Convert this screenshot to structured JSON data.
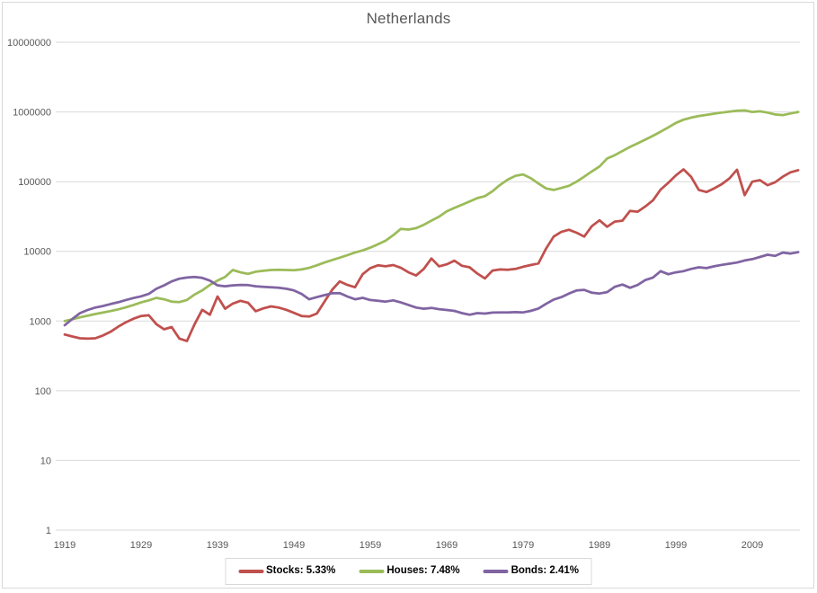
{
  "chart_data": {
    "type": "line",
    "title": "Netherlands",
    "x_scale": "linear",
    "y_scale": "log",
    "ylim": [
      1,
      10000000
    ],
    "xlim": [
      1919,
      2015
    ],
    "grid": "horizontal",
    "legend_position": "bottom",
    "y_ticks": [
      1,
      10,
      100,
      1000,
      10000,
      100000,
      1000000,
      10000000
    ],
    "x_ticks": [
      1919,
      1929,
      1939,
      1949,
      1959,
      1969,
      1979,
      1989,
      1999,
      2009
    ],
    "colors": {
      "grid": "#d9d9d9",
      "axis_text": "#595959",
      "title": "#595959",
      "border": "#d9d9d9"
    },
    "years": [
      1919,
      1920,
      1921,
      1922,
      1923,
      1924,
      1925,
      1926,
      1927,
      1928,
      1929,
      1930,
      1931,
      1932,
      1933,
      1934,
      1935,
      1936,
      1937,
      1938,
      1939,
      1940,
      1941,
      1942,
      1943,
      1944,
      1945,
      1946,
      1947,
      1948,
      1949,
      1950,
      1951,
      1952,
      1953,
      1954,
      1955,
      1956,
      1957,
      1958,
      1959,
      1960,
      1961,
      1962,
      1963,
      1964,
      1965,
      1966,
      1967,
      1968,
      1969,
      1970,
      1971,
      1972,
      1973,
      1974,
      1975,
      1976,
      1977,
      1978,
      1979,
      1980,
      1981,
      1982,
      1983,
      1984,
      1985,
      1986,
      1987,
      1988,
      1989,
      1990,
      1991,
      1992,
      1993,
      1994,
      1995,
      1996,
      1997,
      1998,
      1999,
      2000,
      2001,
      2002,
      2003,
      2004,
      2005,
      2006,
      2007,
      2008,
      2009,
      2010,
      2011,
      2012,
      2013,
      2014,
      2015
    ],
    "series": [
      {
        "name": "Stocks",
        "legend_label": "Stocks: 5.33%",
        "annual_return_pct": 5.33,
        "color": "#C0504D",
        "values": [
          640,
          600,
          565,
          558,
          565,
          620,
          700,
          830,
          960,
          1080,
          1180,
          1210,
          900,
          760,
          820,
          560,
          515,
          900,
          1450,
          1230,
          2250,
          1500,
          1780,
          1950,
          1830,
          1380,
          1520,
          1620,
          1560,
          1450,
          1310,
          1180,
          1160,
          1280,
          1900,
          2800,
          3700,
          3300,
          3050,
          4700,
          5740,
          6300,
          6100,
          6350,
          5800,
          5000,
          4500,
          5600,
          7900,
          6100,
          6500,
          7350,
          6200,
          5900,
          4800,
          4080,
          5300,
          5500,
          5450,
          5600,
          6000,
          6350,
          6700,
          10900,
          16300,
          19000,
          20400,
          18500,
          16300,
          23000,
          27900,
          22500,
          26700,
          27500,
          38000,
          37000,
          44000,
          54000,
          77000,
          96000,
          123000,
          150000,
          117000,
          76000,
          71000,
          80000,
          92000,
          111000,
          148000,
          64000,
          100000,
          105000,
          89000,
          98000,
          118000,
          136000,
          146000
        ]
      },
      {
        "name": "Houses",
        "legend_label": "Houses: 7.48%",
        "annual_return_pct": 7.48,
        "color": "#9BBB59",
        "values": [
          1000,
          1060,
          1130,
          1190,
          1260,
          1320,
          1390,
          1470,
          1570,
          1700,
          1850,
          1980,
          2150,
          2050,
          1900,
          1870,
          2000,
          2400,
          2750,
          3300,
          3800,
          4300,
          5400,
          5000,
          4750,
          5100,
          5250,
          5400,
          5450,
          5400,
          5350,
          5500,
          5800,
          6300,
          6900,
          7500,
          8100,
          8800,
          9600,
          10300,
          11300,
          12600,
          14200,
          17000,
          21000,
          20500,
          21500,
          24000,
          27500,
          31500,
          37500,
          42000,
          46500,
          52000,
          58000,
          62000,
          73000,
          90000,
          107000,
          121000,
          127000,
          112000,
          94000,
          80000,
          76000,
          81000,
          87000,
          100000,
          118000,
          140000,
          165000,
          215000,
          240000,
          275000,
          315000,
          355000,
          400000,
          455000,
          520000,
          600000,
          695000,
          775000,
          830000,
          875000,
          905000,
          945000,
          980000,
          1010000,
          1040000,
          1050000,
          1000000,
          1020000,
          980000,
          920000,
          900000,
          950000,
          1000000
        ]
      },
      {
        "name": "Bonds",
        "legend_label": "Bonds: 2.41%",
        "annual_return_pct": 2.41,
        "color": "#8064A2",
        "values": [
          870,
          1070,
          1300,
          1440,
          1560,
          1640,
          1750,
          1860,
          2000,
          2140,
          2260,
          2450,
          2900,
          3250,
          3700,
          4050,
          4200,
          4300,
          4150,
          3800,
          3250,
          3150,
          3250,
          3300,
          3280,
          3150,
          3100,
          3050,
          3000,
          2900,
          2750,
          2450,
          2050,
          2200,
          2350,
          2500,
          2520,
          2250,
          2050,
          2150,
          2000,
          1950,
          1900,
          1980,
          1850,
          1700,
          1560,
          1500,
          1540,
          1480,
          1440,
          1400,
          1300,
          1230,
          1300,
          1280,
          1320,
          1330,
          1330,
          1340,
          1330,
          1400,
          1510,
          1760,
          2030,
          2200,
          2480,
          2740,
          2800,
          2550,
          2480,
          2600,
          3100,
          3340,
          3000,
          3300,
          3870,
          4200,
          5190,
          4700,
          5000,
          5190,
          5600,
          5900,
          5750,
          6100,
          6400,
          6650,
          6900,
          7400,
          7730,
          8300,
          8950,
          8600,
          9600,
          9300,
          9700
        ]
      }
    ]
  }
}
